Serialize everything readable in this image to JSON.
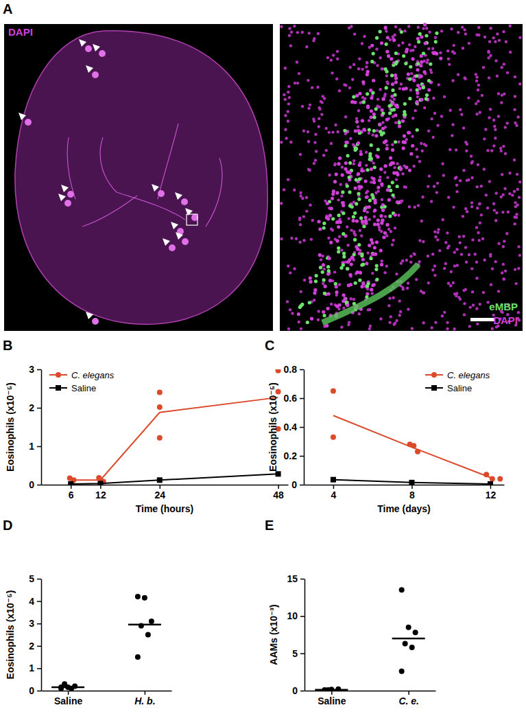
{
  "panel_labels": [
    "A",
    "B",
    "C",
    "D",
    "E"
  ],
  "images": [
    {
      "labels": [
        "DAPI"
      ]
    },
    {
      "labels": [
        "eMBP",
        "DAPI"
      ]
    }
  ],
  "chart_data": [
    {
      "type": "line",
      "xlabel": "Time (hours)",
      "ylabel": "Eosinophils (x10⁻⁵)",
      "x": [
        6,
        12,
        24,
        48
      ],
      "xlim": [
        0,
        50
      ],
      "xticks": [
        6,
        12,
        24,
        48
      ],
      "ylim": [
        0,
        3
      ],
      "yticks": [
        0,
        1,
        2,
        3
      ],
      "legend": "upper left",
      "series": [
        {
          "name": "C. elegans",
          "color": "#dc4a2c",
          "marker": "circle",
          "values": [
            0.12,
            0.12,
            1.88,
            2.27
          ],
          "points": {
            "x": [
              5.8,
              6.6,
              6.2,
              11.7,
              12.2,
              12.6,
              24,
              24,
              24,
              48,
              48,
              48
            ],
            "y": [
              0.17,
              0.12,
              0.03,
              0.18,
              0.1,
              0.08,
              2.4,
              2.02,
              1.22,
              2.97,
              2.42,
              1.45
            ]
          }
        },
        {
          "name": "Saline",
          "color": "#000000",
          "marker": "square",
          "values": [
            0.02,
            0.03,
            0.12,
            0.28
          ]
        }
      ]
    },
    {
      "type": "line",
      "xlabel": "Time (days)",
      "ylabel": "Eosinophils (x10⁻⁵)",
      "x": [
        4,
        8,
        12
      ],
      "xlim": [
        2.5,
        12.7
      ],
      "xticks": [
        4,
        8,
        12
      ],
      "ylim": [
        0,
        0.8
      ],
      "yticks": [
        0,
        0.2,
        0.4,
        0.6,
        0.8
      ],
      "legend": "upper right",
      "series": [
        {
          "name": "C. elegans",
          "color": "#dc4a2c",
          "marker": "circle",
          "values": [
            0.48,
            0.26,
            0.05
          ],
          "points": {
            "x": [
              4,
              4,
              7.9,
              8.1,
              8.3,
              11.8,
              12.1,
              12.5
            ],
            "y": [
              0.65,
              0.33,
              0.28,
              0.27,
              0.23,
              0.07,
              0.04,
              0.04
            ]
          }
        },
        {
          "name": "Saline",
          "color": "#000000",
          "marker": "square",
          "values": [
            0.035,
            0.015,
            0.005
          ]
        }
      ]
    },
    {
      "type": "dot",
      "ylabel": "Eosinophils (x10⁻⁵)",
      "categories": [
        "Saline",
        "H. b."
      ],
      "ylim": [
        0,
        5
      ],
      "yticks": [
        0,
        1,
        2,
        3,
        4,
        5
      ],
      "values": [
        0.15,
        2.95
      ],
      "points": [
        [
          0.1,
          0.15,
          0.2,
          0.3,
          0.1,
          0.15
        ],
        [
          4.2,
          4.15,
          3.1,
          2.9,
          2.5,
          1.5
        ]
      ]
    },
    {
      "type": "dot",
      "ylabel": "AAMs (x10⁻³)",
      "categories": [
        "Saline",
        "C. e."
      ],
      "ylim": [
        0,
        15
      ],
      "yticks": [
        0,
        5,
        10,
        15
      ],
      "values": [
        0.12,
        7.0
      ],
      "points": [
        [
          0.1,
          0.15,
          0.2,
          0.1
        ],
        [
          13.5,
          8.5,
          7.8,
          6.3,
          5.8,
          2.6
        ]
      ]
    }
  ]
}
